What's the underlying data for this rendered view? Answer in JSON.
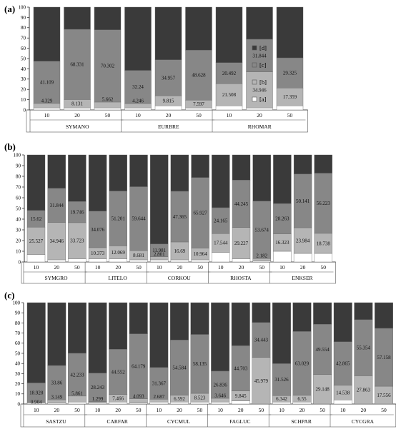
{
  "chart_data": [
    {
      "panel_label": "(a)",
      "type": "bar",
      "stacked": true,
      "ylim": [
        0,
        100
      ],
      "yticks": [
        0,
        10,
        20,
        30,
        40,
        50,
        60,
        70,
        80,
        90,
        100
      ],
      "legend_position": "right",
      "legend": [
        "[d]",
        "[c]",
        "[b]",
        "[a]"
      ],
      "colors": {
        "a": "#ffffff",
        "b": "#b5b5b5",
        "c": "#878787",
        "d": "#3a3a3a"
      },
      "groups": [
        {
          "name": "SYMANO",
          "bars": [
            {
              "x": "10",
              "a": 2,
              "b": 4.329,
              "c": 41.109,
              "labels": {
                "b": "4.329",
                "c": "41.109"
              }
            },
            {
              "x": "20",
              "a": 2,
              "b": 8.131,
              "c": 68.331,
              "labels": {
                "b": "8.131",
                "c": "68.331"
              }
            },
            {
              "x": "50",
              "a": 2,
              "b": 5.662,
              "c": 70.302,
              "labels": {
                "b": "5.662",
                "c": "70.302"
              }
            }
          ]
        },
        {
          "name": "EURBRE",
          "bars": [
            {
              "x": "10",
              "a": 2,
              "b": 4.246,
              "c": 32.24,
              "labels": {
                "b": "4.246",
                "c": "32.24"
              }
            },
            {
              "x": "20",
              "a": 4,
              "b": 9.815,
              "c": 34.957,
              "labels": {
                "b": "9.815",
                "c": "34.957"
              }
            },
            {
              "x": "50",
              "a": 2,
              "b": 7.597,
              "c": 48.628,
              "labels": {
                "b": "7.597",
                "c": "48.628"
              }
            }
          ]
        },
        {
          "name": "RHOMAR",
          "bars": [
            {
              "x": "10",
              "a": 4,
              "b": 21.508,
              "c": 20.492,
              "labels": {
                "b": "21.508",
                "c": "20.492"
              }
            },
            {
              "x": "20",
              "a": 2,
              "b": 34.946,
              "c": 31.844,
              "labels": {
                "b": "34.946",
                "c": "31.844"
              }
            },
            {
              "x": "50",
              "a": 4,
              "b": 17.359,
              "c": 29.325,
              "labels": {
                "b": "17.359",
                "c": "29.325"
              }
            }
          ]
        }
      ]
    },
    {
      "panel_label": "(b)",
      "type": "bar",
      "stacked": true,
      "ylim": [
        0,
        100
      ],
      "yticks": [
        0,
        10,
        20,
        30,
        40,
        50,
        60,
        70,
        80,
        90,
        100
      ],
      "colors": {
        "a": "#ffffff",
        "b": "#b5b5b5",
        "c": "#878787",
        "d": "#3a3a3a"
      },
      "groups": [
        {
          "name": "SYMGRO",
          "bars": [
            {
              "x": "10",
              "a": 7,
              "b": 25.527,
              "c": 15.62,
              "labels": {
                "b": "25.527",
                "c": "15.62"
              }
            },
            {
              "x": "20",
              "a": 2,
              "b": 34.946,
              "c": 31.844,
              "labels": {
                "b": "34.946",
                "c": "31.844"
              }
            },
            {
              "x": "50",
              "a": 3,
              "b": 33.723,
              "c": 19.746,
              "labels": {
                "b": "33.723",
                "c": "19.746"
              }
            }
          ]
        },
        {
          "name": "LITELO",
          "bars": [
            {
              "x": "10",
              "a": 3,
              "b": 10.373,
              "c": 34.076,
              "labels": {
                "b": "10.373",
                "c": "34.076"
              }
            },
            {
              "x": "20",
              "a": 3,
              "b": 12.069,
              "c": 51.201,
              "labels": {
                "b": "12.069",
                "c": "51.201"
              }
            },
            {
              "x": "50",
              "a": 2,
              "b": 8.681,
              "c": 59.644,
              "labels": {
                "b": "8.681",
                "c": "59.644"
              }
            }
          ]
        },
        {
          "name": "CORKOU",
          "bars": [
            {
              "x": "10",
              "a": 2,
              "b": 2.801,
              "c": 11.981,
              "labels": {
                "b": "2.801",
                "c": "11.981"
              }
            },
            {
              "x": "20",
              "a": 2,
              "b": 16.69,
              "c": 47.365,
              "labels": {
                "b": "16.69",
                "c": "47.365"
              }
            },
            {
              "x": "50",
              "a": 2,
              "b": 10.964,
              "c": 65.927,
              "labels": {
                "b": "10.964",
                "c": "65.927"
              }
            }
          ]
        },
        {
          "name": "RHOSTA",
          "bars": [
            {
              "x": "10",
              "a": 9,
              "b": 17.544,
              "c": 24.165,
              "labels": {
                "b": "17.544",
                "c": "24.165"
              }
            },
            {
              "x": "20",
              "a": 3,
              "b": 29.227,
              "c": 44.245,
              "labels": {
                "b": "29.227",
                "c": "44.245"
              }
            },
            {
              "x": "50",
              "a": 1,
              "b": 2.182,
              "c": 53.674,
              "labels": {
                "b": "2.182",
                "c": "53.674"
              }
            }
          ]
        },
        {
          "name": "ENKSER",
          "bars": [
            {
              "x": "10",
              "a": 10,
              "b": 16.323,
              "c": 28.263,
              "labels": {
                "b": "16.323",
                "c": "28.263"
              }
            },
            {
              "x": "20",
              "a": 8,
              "b": 23.984,
              "c": 50.141,
              "labels": {
                "b": "23.984",
                "c": "50.141"
              }
            },
            {
              "x": "50",
              "a": 8,
              "b": 18.738,
              "c": 56.223,
              "labels": {
                "b": "18.738",
                "c": "56.223"
              }
            }
          ]
        }
      ]
    },
    {
      "panel_label": "(c)",
      "type": "bar",
      "stacked": true,
      "ylim": [
        0,
        100
      ],
      "yticks": [
        0,
        10,
        20,
        30,
        40,
        50,
        60,
        70,
        80,
        90,
        100
      ],
      "colors": {
        "a": "#ffffff",
        "b": "#b5b5b5",
        "c": "#878787",
        "d": "#3a3a3a"
      },
      "groups": [
        {
          "name": "SASTZU",
          "bars": [
            {
              "x": "10",
              "a": 0.904,
              "b": 1,
              "c": 18.928,
              "labels": {
                "a": "0.904",
                "c": "18.928"
              }
            },
            {
              "x": "20",
              "a": 1,
              "b": 3.149,
              "c": 33.86,
              "labels": {
                "b": "3.149",
                "c": "33.86"
              }
            },
            {
              "x": "50",
              "a": 2,
              "b": 5.861,
              "c": 42.233,
              "labels": {
                "b": "5.861",
                "c": "42.233"
              }
            }
          ]
        },
        {
          "name": "CARFAR",
          "bars": [
            {
              "x": "10",
              "a": 1,
              "b": 1.299,
              "c": 28.243,
              "labels": {
                "b": "1.299",
                "c": "28.243"
              }
            },
            {
              "x": "20",
              "a": 2,
              "b": 7.466,
              "c": 44.552,
              "labels": {
                "b": "7.466",
                "c": "44.552"
              }
            },
            {
              "x": "50",
              "a": 1,
              "b": 4.093,
              "c": 64.179,
              "labels": {
                "b": "4.093",
                "c": "64.179"
              }
            }
          ]
        },
        {
          "name": "CYCMUL",
          "bars": [
            {
              "x": "10",
              "a": 2,
              "b": 2.687,
              "c": 31.367,
              "labels": {
                "b": "2.687",
                "c": "31.367"
              }
            },
            {
              "x": "20",
              "a": 2,
              "b": 6.592,
              "c": 54.584,
              "labels": {
                "b": "6.592",
                "c": "54.584"
              }
            },
            {
              "x": "50",
              "a": 2,
              "b": 8.523,
              "c": 58.135,
              "labels": {
                "b": "8.523",
                "c": "58.135"
              }
            }
          ]
        },
        {
          "name": "FAGLUC",
          "bars": [
            {
              "x": "10",
              "a": 2,
              "b": 3.646,
              "c": 26.836,
              "labels": {
                "b": "3.646",
                "c": "26.836"
              }
            },
            {
              "x": "20",
              "a": 3,
              "b": 9.845,
              "c": 44.703,
              "labels": {
                "b": "9.845",
                "c": "44.703"
              }
            },
            {
              "x": "50",
              "a": 0,
              "b": 45.979,
              "c": 34.443,
              "labels": {
                "b": "45.979",
                "c": "34.443"
              }
            }
          ]
        },
        {
          "name": "SCHPAR",
          "bars": [
            {
              "x": "10",
              "a": 2,
              "b": 6.342,
              "c": 31.526,
              "labels": {
                "b": "6.342",
                "c": "31.526"
              }
            },
            {
              "x": "20",
              "a": 2,
              "b": 6.55,
              "c": 63.029,
              "labels": {
                "b": "6.55",
                "c": "63.029"
              }
            },
            {
              "x": "50",
              "a": 0,
              "b": 29.148,
              "c": 49.554,
              "labels": {
                "b": "29.148",
                "c": "49.554"
              }
            }
          ]
        },
        {
          "name": "CYCGRA",
          "bars": [
            {
              "x": "10",
              "a": 4,
              "b": 14.538,
              "c": 42.865,
              "labels": {
                "b": "14.538",
                "c": "42.865"
              }
            },
            {
              "x": "20",
              "a": 0,
              "b": 27.863,
              "c": 55.354,
              "labels": {
                "b": "27.863",
                "c": "55.354"
              }
            },
            {
              "x": "50",
              "a": 0,
              "b": 17.556,
              "c": 57.158,
              "labels": {
                "b": "17.556",
                "c": "57.158"
              }
            }
          ]
        }
      ]
    }
  ]
}
